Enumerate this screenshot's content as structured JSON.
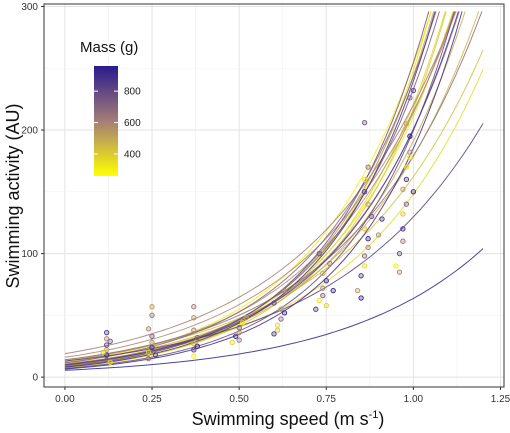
{
  "chart_data": {
    "type": "scatter",
    "title": "",
    "xlabel_main": "Swimming speed (m s",
    "xlabel_sup": "-1",
    "xlabel_close": ")",
    "ylabel": "Swimming activity (AU)",
    "xlim": [
      -0.06,
      1.26
    ],
    "ylim": [
      -8,
      302
    ],
    "x_ticks": [
      0.0,
      0.25,
      0.5,
      0.75,
      1.0,
      1.25
    ],
    "x_tick_labels": [
      "0.00",
      "0.25",
      "0.50",
      "0.75",
      "1.00",
      "1.25"
    ],
    "y_ticks": [
      0,
      100,
      200,
      300
    ],
    "y_tick_labels": [
      "0",
      "100",
      "200",
      "300"
    ],
    "grid": true,
    "legend": {
      "title": "Mass (g)",
      "placement": "top-left",
      "color_low": "#ffff00",
      "color_high": "#2a1b8e",
      "range": [
        260,
        960
      ],
      "ticks": [
        400,
        600,
        800
      ],
      "tick_labels": [
        "400",
        "600",
        "800"
      ]
    },
    "curves": [
      {
        "mass": 300,
        "a": 12.0,
        "b": 3.05
      },
      {
        "mass": 320,
        "a": 10.5,
        "b": 3.0
      },
      {
        "mass": 340,
        "a": 7.5,
        "b": 3.5
      },
      {
        "mass": 360,
        "a": 11.0,
        "b": 2.6
      },
      {
        "mass": 380,
        "a": 9.0,
        "b": 3.2
      },
      {
        "mass": 400,
        "a": 8.0,
        "b": 3.3
      },
      {
        "mass": 430,
        "a": 14.0,
        "b": 2.45
      },
      {
        "mass": 460,
        "a": 12.0,
        "b": 2.7
      },
      {
        "mass": 490,
        "a": 10.0,
        "b": 2.95
      },
      {
        "mass": 520,
        "a": 9.0,
        "b": 3.3
      },
      {
        "mass": 550,
        "a": 13.0,
        "b": 2.8
      },
      {
        "mass": 580,
        "a": 16.0,
        "b": 2.6
      },
      {
        "mass": 610,
        "a": 19.0,
        "b": 2.45
      },
      {
        "mass": 640,
        "a": 10.5,
        "b": 2.95
      },
      {
        "mass": 670,
        "a": 14.0,
        "b": 2.55
      },
      {
        "mass": 700,
        "a": 11.5,
        "b": 3.05
      },
      {
        "mass": 730,
        "a": 9.5,
        "b": 3.2
      },
      {
        "mass": 760,
        "a": 8.5,
        "b": 3.4
      },
      {
        "mass": 790,
        "a": 7.0,
        "b": 3.35
      },
      {
        "mass": 820,
        "a": 13.0,
        "b": 2.3
      },
      {
        "mass": 850,
        "a": 10.0,
        "b": 3.0
      },
      {
        "mass": 880,
        "a": 8.0,
        "b": 3.4
      },
      {
        "mass": 910,
        "a": 6.5,
        "b": 3.35
      },
      {
        "mass": 940,
        "a": 5.5,
        "b": 2.45
      }
    ],
    "points": [
      {
        "x": 0.12,
        "y": 14,
        "mass": 700
      },
      {
        "x": 0.12,
        "y": 18,
        "mass": 900
      },
      {
        "x": 0.12,
        "y": 22,
        "mass": 500
      },
      {
        "x": 0.12,
        "y": 26,
        "mass": 820
      },
      {
        "x": 0.12,
        "y": 31,
        "mass": 600
      },
      {
        "x": 0.12,
        "y": 36,
        "mass": 880
      },
      {
        "x": 0.13,
        "y": 12,
        "mass": 350
      },
      {
        "x": 0.11,
        "y": 20,
        "mass": 420
      },
      {
        "x": 0.13,
        "y": 29,
        "mass": 760
      },
      {
        "x": 0.24,
        "y": 15,
        "mass": 650
      },
      {
        "x": 0.24,
        "y": 20,
        "mass": 380
      },
      {
        "x": 0.25,
        "y": 24,
        "mass": 900
      },
      {
        "x": 0.25,
        "y": 28,
        "mass": 560
      },
      {
        "x": 0.25,
        "y": 33,
        "mass": 720
      },
      {
        "x": 0.24,
        "y": 39,
        "mass": 600
      },
      {
        "x": 0.25,
        "y": 50,
        "mass": 640
      },
      {
        "x": 0.25,
        "y": 57,
        "mass": 520
      },
      {
        "x": 0.26,
        "y": 18,
        "mass": 860
      },
      {
        "x": 0.37,
        "y": 17,
        "mass": 300
      },
      {
        "x": 0.37,
        "y": 22,
        "mass": 850
      },
      {
        "x": 0.37,
        "y": 27,
        "mass": 460
      },
      {
        "x": 0.38,
        "y": 32,
        "mass": 700
      },
      {
        "x": 0.37,
        "y": 38,
        "mass": 600
      },
      {
        "x": 0.37,
        "y": 48,
        "mass": 550
      },
      {
        "x": 0.37,
        "y": 57,
        "mass": 620
      },
      {
        "x": 0.38,
        "y": 25,
        "mass": 930
      },
      {
        "x": 0.48,
        "y": 28,
        "mass": 380
      },
      {
        "x": 0.49,
        "y": 33,
        "mass": 900
      },
      {
        "x": 0.5,
        "y": 36,
        "mass": 560
      },
      {
        "x": 0.5,
        "y": 40,
        "mass": 720
      },
      {
        "x": 0.51,
        "y": 44,
        "mass": 330
      },
      {
        "x": 0.5,
        "y": 30,
        "mass": 640
      },
      {
        "x": 0.52,
        "y": 48,
        "mass": 500
      },
      {
        "x": 0.6,
        "y": 35,
        "mass": 880
      },
      {
        "x": 0.61,
        "y": 42,
        "mass": 360
      },
      {
        "x": 0.62,
        "y": 47,
        "mass": 700
      },
      {
        "x": 0.62,
        "y": 55,
        "mass": 520
      },
      {
        "x": 0.6,
        "y": 60,
        "mass": 800
      },
      {
        "x": 0.63,
        "y": 52,
        "mass": 940
      },
      {
        "x": 0.63,
        "y": 70,
        "mass": 600
      },
      {
        "x": 0.61,
        "y": 38,
        "mass": 420
      },
      {
        "x": 0.72,
        "y": 55,
        "mass": 840
      },
      {
        "x": 0.73,
        "y": 62,
        "mass": 340
      },
      {
        "x": 0.74,
        "y": 66,
        "mass": 720
      },
      {
        "x": 0.74,
        "y": 72,
        "mass": 580
      },
      {
        "x": 0.75,
        "y": 78,
        "mass": 900
      },
      {
        "x": 0.74,
        "y": 84,
        "mass": 480
      },
      {
        "x": 0.76,
        "y": 92,
        "mass": 640
      },
      {
        "x": 0.75,
        "y": 58,
        "mass": 390
      },
      {
        "x": 0.73,
        "y": 100,
        "mass": 760
      },
      {
        "x": 0.77,
        "y": 70,
        "mass": 930
      },
      {
        "x": 0.84,
        "y": 70,
        "mass": 540
      },
      {
        "x": 0.85,
        "y": 82,
        "mass": 880
      },
      {
        "x": 0.86,
        "y": 90,
        "mass": 360
      },
      {
        "x": 0.86,
        "y": 98,
        "mass": 700
      },
      {
        "x": 0.87,
        "y": 105,
        "mass": 600
      },
      {
        "x": 0.87,
        "y": 112,
        "mass": 920
      },
      {
        "x": 0.86,
        "y": 120,
        "mass": 430
      },
      {
        "x": 0.88,
        "y": 130,
        "mass": 780
      },
      {
        "x": 0.87,
        "y": 140,
        "mass": 520
      },
      {
        "x": 0.86,
        "y": 150,
        "mass": 850
      },
      {
        "x": 0.86,
        "y": 160,
        "mass": 330
      },
      {
        "x": 0.87,
        "y": 170,
        "mass": 660
      },
      {
        "x": 0.86,
        "y": 206,
        "mass": 760
      },
      {
        "x": 0.85,
        "y": 64,
        "mass": 940
      },
      {
        "x": 0.9,
        "y": 115,
        "mass": 560
      },
      {
        "x": 0.91,
        "y": 128,
        "mass": 890
      },
      {
        "x": 0.95,
        "y": 90,
        "mass": 300
      },
      {
        "x": 0.96,
        "y": 100,
        "mass": 780
      },
      {
        "x": 0.97,
        "y": 110,
        "mass": 640
      },
      {
        "x": 0.97,
        "y": 120,
        "mass": 900
      },
      {
        "x": 0.97,
        "y": 132,
        "mass": 420
      },
      {
        "x": 0.98,
        "y": 140,
        "mass": 720
      },
      {
        "x": 0.97,
        "y": 152,
        "mass": 540
      },
      {
        "x": 0.98,
        "y": 160,
        "mass": 860
      },
      {
        "x": 0.98,
        "y": 170,
        "mass": 340
      },
      {
        "x": 0.99,
        "y": 182,
        "mass": 600
      },
      {
        "x": 0.99,
        "y": 195,
        "mass": 940
      },
      {
        "x": 0.98,
        "y": 205,
        "mass": 480
      },
      {
        "x": 0.99,
        "y": 226,
        "mass": 700
      },
      {
        "x": 1.0,
        "y": 232,
        "mass": 820
      },
      {
        "x": 0.99,
        "y": 178,
        "mass": 310
      },
      {
        "x": 1.0,
        "y": 150,
        "mass": 920
      },
      {
        "x": 0.96,
        "y": 85,
        "mass": 580
      }
    ]
  }
}
